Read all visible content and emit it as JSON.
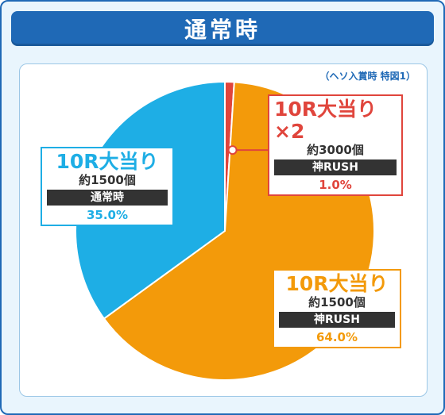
{
  "header": {
    "title": "通常時"
  },
  "note": "（ヘソ入賞時 特図1）",
  "colors": {
    "red": "#e0453c",
    "orange": "#f39a0a",
    "blue": "#1eaee5",
    "frame": "#1f69b6"
  },
  "chart_data": {
    "type": "pie",
    "title": "通常時",
    "slices": [
      {
        "title": "10R大当り×2",
        "count": "約3000個",
        "mode": "神RUSH",
        "percent_label": "1.0%",
        "value": 1.0,
        "color": "#e0453c"
      },
      {
        "title": "10R大当り",
        "count": "約1500個",
        "mode": "神RUSH",
        "percent_label": "64.0%",
        "value": 64.0,
        "color": "#f39a0a"
      },
      {
        "title": "10R大当り",
        "count": "約1500個",
        "mode": "通常時",
        "percent_label": "35.0%",
        "value": 35.0,
        "color": "#1eaee5"
      }
    ]
  }
}
